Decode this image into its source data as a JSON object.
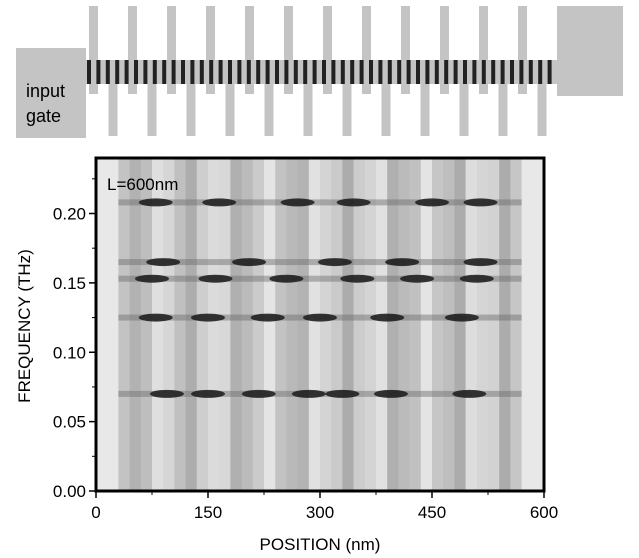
{
  "schematic": {
    "gate_label_line1": "input",
    "gate_label_line2": "gate",
    "gate_color": "#c4c4c4",
    "channel_color": "#222222"
  },
  "chart_data": {
    "type": "heatmap",
    "title": "L=600nm",
    "xlabel": "POSITION (nm)",
    "ylabel": "FREQUENCY (THz)",
    "xlim": [
      0,
      600
    ],
    "ylim": [
      0,
      0.24
    ],
    "xticks": [
      0,
      150,
      300,
      450,
      600
    ],
    "xtick_labels": [
      "0",
      "150",
      "300",
      "450",
      "600"
    ],
    "yticks": [
      0.0,
      0.05,
      0.1,
      0.15,
      0.2
    ],
    "ytick_labels": [
      "0.00",
      "0.05",
      "0.10",
      "0.15",
      "0.20"
    ],
    "colormap": "grayscale (dark = high intensity)",
    "resonance_bands": [
      {
        "frequency": 0.07,
        "peaks_at": [
          95,
          150,
          218,
          285,
          330,
          395,
          500
        ]
      },
      {
        "frequency": 0.125,
        "peaks_at": [
          80,
          150,
          230,
          300,
          390,
          490
        ]
      },
      {
        "frequency": 0.153,
        "peaks_at": [
          75,
          160,
          255,
          350,
          430,
          510
        ]
      },
      {
        "frequency": 0.165,
        "peaks_at": [
          90,
          205,
          320,
          410,
          515
        ]
      },
      {
        "frequency": 0.208,
        "peaks_at": [
          80,
          165,
          270,
          345,
          450,
          515
        ]
      }
    ],
    "grid": false,
    "legend": "none"
  }
}
